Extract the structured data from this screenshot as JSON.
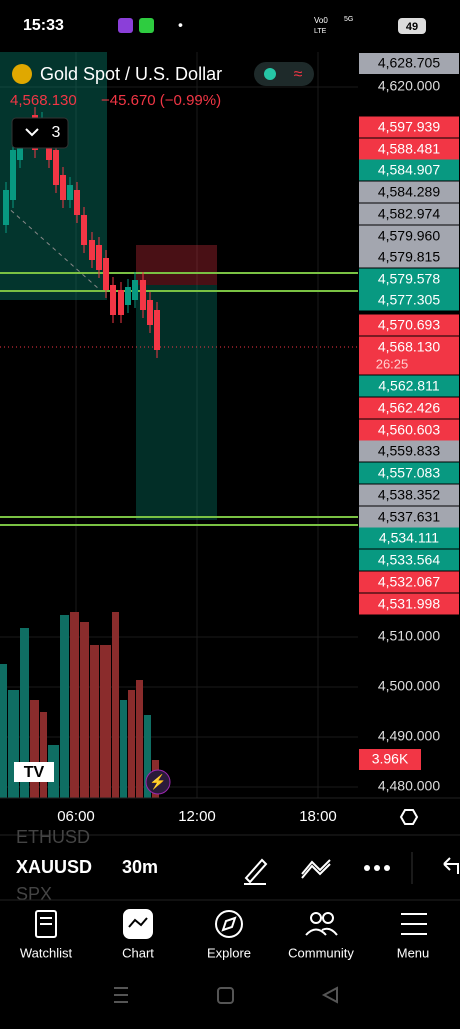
{
  "status_bar": {
    "time": "15:33",
    "carrier": "Vo0",
    "carrier_sub": "LTE",
    "network": "5G",
    "battery": "49"
  },
  "symbol": {
    "title": "Gold Spot / U.S. Dollar",
    "price": "4,568.130",
    "change": "−45.670 (−0.99%)",
    "indicators": "3"
  },
  "price_scale": {
    "top": "4,628.705",
    "tags": [
      {
        "label": "4,597.939",
        "color": "#f23645"
      },
      {
        "label": "4,588.481",
        "color": "#f23645"
      },
      {
        "label": "4,584.907",
        "color": "#089981"
      },
      {
        "label": "4,584.289",
        "color": "#a3a6af"
      },
      {
        "label": "4,582.974",
        "color": "#a3a6af"
      },
      {
        "label": "4,579.960",
        "color": "#a3a6af"
      },
      {
        "label": "4,579.815",
        "color": "#a3a6af"
      },
      {
        "label": "4,579.578",
        "color": "#089981"
      },
      {
        "label": "4,577.305",
        "color": "#089981"
      },
      {
        "label": "4,570.693",
        "color": "#f23645"
      },
      {
        "label": "4,568.130",
        "color": "#f23645"
      },
      {
        "label": "4,562.811",
        "color": "#089981"
      },
      {
        "label": "4,562.426",
        "color": "#f23645"
      },
      {
        "label": "4,560.603",
        "color": "#f23645"
      },
      {
        "label": "4,559.833",
        "color": "#a3a6af"
      },
      {
        "label": "4,557.083",
        "color": "#089981"
      },
      {
        "label": "4,538.352",
        "color": "#a3a6af"
      },
      {
        "label": "4,537.631",
        "color": "#a3a6af"
      },
      {
        "label": "4,534.111",
        "color": "#089981"
      },
      {
        "label": "4,533.564",
        "color": "#089981"
      },
      {
        "label": "4,532.067",
        "color": "#f23645"
      },
      {
        "label": "4,531.998",
        "color": "#f23645"
      }
    ],
    "countdown": "26:25",
    "axis_labels": [
      "4,620.000",
      "4,510.000",
      "4,500.000",
      "4,490.000",
      "4,480.000"
    ],
    "volume": "3.96K"
  },
  "time_axis": [
    "06:00",
    "12:00",
    "18:00"
  ],
  "toolbar": {
    "symbol": "XAUUSD",
    "interval": "30m",
    "hidden_above": "ETHUSD",
    "hidden_below": "SPX"
  },
  "nav": [
    "Watchlist",
    "Chart",
    "Explore",
    "Community",
    "Menu"
  ]
}
